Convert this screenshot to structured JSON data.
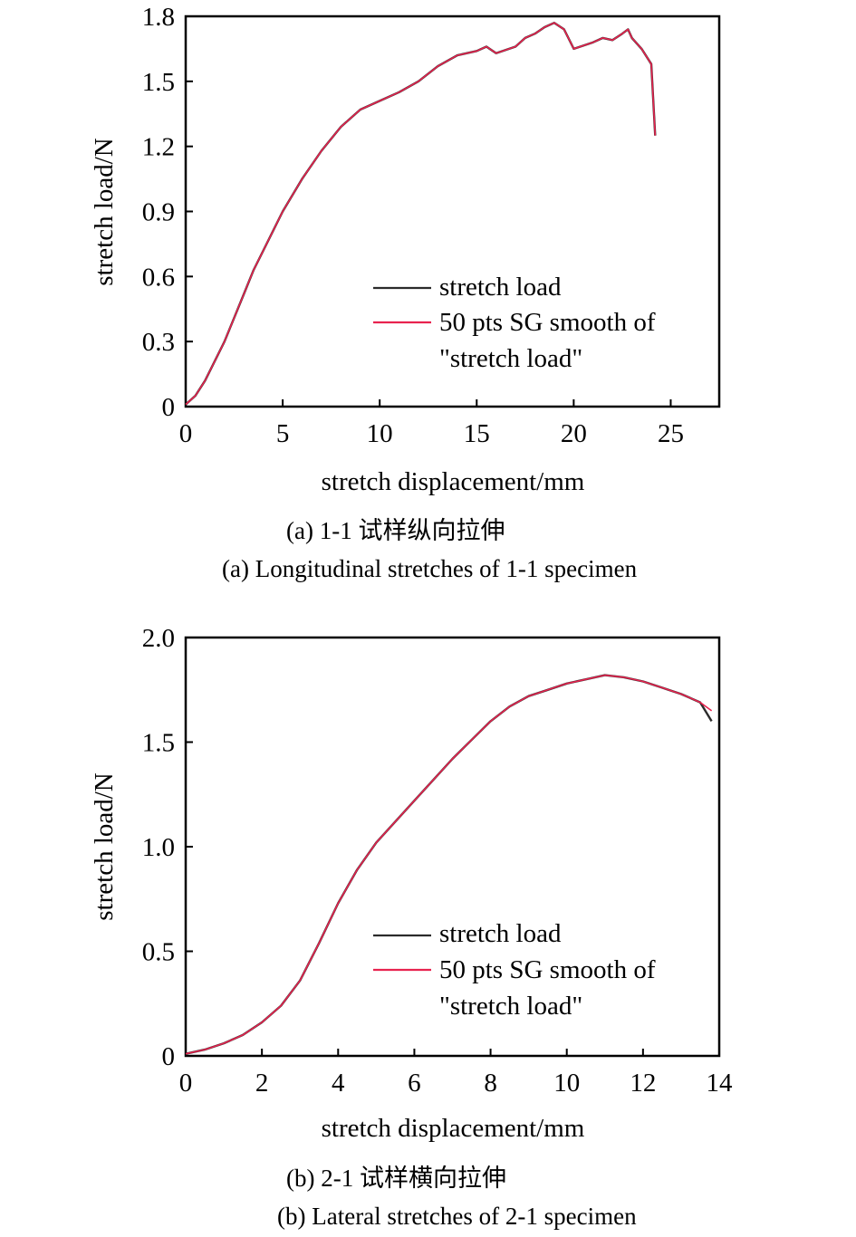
{
  "chart_data": [
    {
      "type": "line",
      "xlabel": "stretch displacement/mm",
      "ylabel": "stretch load/N",
      "xlim": [
        0,
        27.5
      ],
      "ylim": [
        0,
        1.8
      ],
      "xticks": [
        "0",
        "5",
        "10",
        "15",
        "20",
        "25"
      ],
      "yticks": [
        "0",
        "0.3",
        "0.6",
        "0.9",
        "1.2",
        "1.5",
        "1.8"
      ],
      "legend_position": "bottom-right",
      "series": [
        {
          "name": "stretch load",
          "color": "#2b2b2b",
          "x": [
            0,
            0.5,
            1,
            2,
            3,
            3.5,
            4,
            5,
            6,
            7,
            8,
            9,
            10,
            11,
            12,
            13,
            14,
            15,
            15.5,
            16,
            17,
            17.5,
            18,
            18.5,
            19,
            19.5,
            20,
            21,
            21.5,
            22,
            22.5,
            22.8,
            23,
            23.5,
            24,
            24.2
          ],
          "y": [
            0.01,
            0.05,
            0.12,
            0.3,
            0.52,
            0.63,
            0.72,
            0.9,
            1.05,
            1.18,
            1.29,
            1.37,
            1.41,
            1.45,
            1.5,
            1.57,
            1.62,
            1.64,
            1.66,
            1.63,
            1.66,
            1.7,
            1.72,
            1.75,
            1.77,
            1.74,
            1.65,
            1.68,
            1.7,
            1.69,
            1.72,
            1.74,
            1.7,
            1.65,
            1.58,
            1.25
          ]
        },
        {
          "name": "50 pts SG smooth of \"stretch load\"",
          "color": "#e8234f",
          "x": [
            0,
            0.5,
            1,
            2,
            3,
            3.5,
            4,
            5,
            6,
            7,
            8,
            9,
            10,
            11,
            12,
            13,
            14,
            15,
            15.5,
            16,
            17,
            17.5,
            18,
            18.5,
            19,
            19.5,
            20,
            21,
            21.5,
            22,
            22.5,
            22.8,
            23,
            23.5,
            24,
            24.2
          ],
          "y": [
            0.01,
            0.05,
            0.12,
            0.3,
            0.52,
            0.63,
            0.72,
            0.9,
            1.05,
            1.18,
            1.29,
            1.37,
            1.41,
            1.45,
            1.5,
            1.57,
            1.62,
            1.64,
            1.66,
            1.63,
            1.66,
            1.7,
            1.72,
            1.75,
            1.77,
            1.74,
            1.65,
            1.68,
            1.7,
            1.69,
            1.72,
            1.74,
            1.7,
            1.65,
            1.58,
            1.25
          ]
        }
      ],
      "caption_cn": "(a) 1-1 试样纵向拉伸",
      "caption_en": "(a) Longitudinal stretches of 1-1 specimen"
    },
    {
      "type": "line",
      "xlabel": "stretch displacement/mm",
      "ylabel": "stretch load/N",
      "xlim": [
        0,
        14
      ],
      "ylim": [
        0,
        2.0
      ],
      "xticks": [
        "0",
        "2",
        "4",
        "6",
        "8",
        "10",
        "12",
        "14"
      ],
      "yticks": [
        "0",
        "0.5",
        "1.0",
        "1.5",
        "2.0"
      ],
      "legend_position": "bottom-right",
      "series": [
        {
          "name": "stretch load",
          "color": "#2b2b2b",
          "x": [
            0,
            0.5,
            1,
            1.5,
            2,
            2.5,
            3,
            3.5,
            4,
            4.5,
            5,
            5.5,
            6,
            6.5,
            7,
            7.5,
            8,
            8.5,
            9,
            9.5,
            10,
            10.5,
            11,
            11.5,
            12,
            12.5,
            13,
            13.5,
            13.8
          ],
          "y": [
            0.01,
            0.03,
            0.06,
            0.1,
            0.16,
            0.24,
            0.36,
            0.54,
            0.73,
            0.89,
            1.02,
            1.12,
            1.22,
            1.32,
            1.42,
            1.51,
            1.6,
            1.67,
            1.72,
            1.75,
            1.78,
            1.8,
            1.82,
            1.81,
            1.79,
            1.76,
            1.73,
            1.69,
            1.6
          ]
        },
        {
          "name": "50 pts SG smooth of \"stretch load\"",
          "color": "#e8234f",
          "x": [
            0,
            0.5,
            1,
            1.5,
            2,
            2.5,
            3,
            3.5,
            4,
            4.5,
            5,
            5.5,
            6,
            6.5,
            7,
            7.5,
            8,
            8.5,
            9,
            9.5,
            10,
            10.5,
            11,
            11.5,
            12,
            12.5,
            13,
            13.5,
            13.8
          ],
          "y": [
            0.01,
            0.03,
            0.06,
            0.1,
            0.16,
            0.24,
            0.36,
            0.54,
            0.73,
            0.89,
            1.02,
            1.12,
            1.22,
            1.32,
            1.42,
            1.51,
            1.6,
            1.67,
            1.72,
            1.75,
            1.78,
            1.8,
            1.82,
            1.81,
            1.79,
            1.76,
            1.73,
            1.69,
            1.65
          ]
        }
      ],
      "caption_cn": "(b) 2-1 试样横向拉伸",
      "caption_en": "(b) Lateral stretches of 2-1 specimen"
    }
  ]
}
